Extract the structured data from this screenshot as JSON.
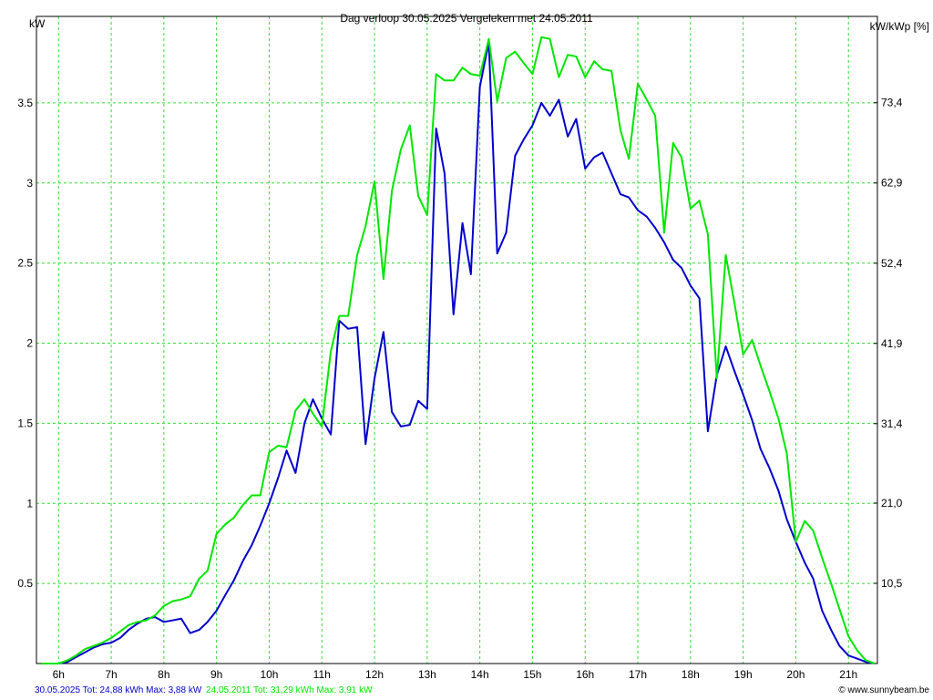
{
  "chart_data": {
    "type": "line",
    "title": "Dag  verloop 30.05.2025   Vergeleken met 24.05.2011",
    "y_label": "kW",
    "y2_label": "kW/kWp [%]",
    "credit": "© www.sunnybeam.be",
    "x": [
      5.67,
      5.83,
      6.0,
      6.17,
      6.33,
      6.5,
      6.67,
      6.83,
      7.0,
      7.17,
      7.33,
      7.5,
      7.67,
      7.83,
      8.0,
      8.17,
      8.33,
      8.5,
      8.67,
      8.83,
      9.0,
      9.17,
      9.33,
      9.5,
      9.67,
      9.83,
      10.0,
      10.17,
      10.33,
      10.5,
      10.67,
      10.83,
      11.0,
      11.17,
      11.33,
      11.5,
      11.67,
      11.83,
      12.0,
      12.17,
      12.33,
      12.5,
      12.67,
      12.83,
      13.0,
      13.17,
      13.33,
      13.5,
      13.67,
      13.83,
      14.0,
      14.17,
      14.33,
      14.5,
      14.67,
      14.83,
      15.0,
      15.17,
      15.33,
      15.5,
      15.67,
      15.83,
      16.0,
      16.17,
      16.33,
      16.5,
      16.67,
      16.83,
      17.0,
      17.17,
      17.33,
      17.5,
      17.67,
      17.83,
      18.0,
      18.17,
      18.33,
      18.5,
      18.67,
      18.83,
      19.0,
      19.17,
      19.33,
      19.5,
      19.67,
      19.83,
      20.0,
      20.17,
      20.33,
      20.5,
      20.67,
      20.83,
      21.0,
      21.17,
      21.33,
      21.5
    ],
    "series": [
      {
        "name": "30.05.2025 Tot: 24,88 kWh Max: 3,88 kW",
        "color": "#0000cc",
        "values": [
          0,
          0,
          0,
          0.01,
          0.04,
          0.07,
          0.1,
          0.12,
          0.13,
          0.16,
          0.21,
          0.25,
          0.28,
          0.29,
          0.26,
          0.27,
          0.28,
          0.19,
          0.21,
          0.26,
          0.33,
          0.43,
          0.52,
          0.64,
          0.74,
          0.86,
          1.0,
          1.16,
          1.33,
          1.19,
          1.5,
          1.65,
          1.53,
          1.43,
          2.14,
          2.09,
          2.1,
          1.37,
          1.78,
          2.07,
          1.57,
          1.48,
          1.49,
          1.64,
          1.59,
          3.34,
          3.06,
          2.18,
          2.75,
          2.43,
          3.6,
          3.88,
          2.56,
          2.69,
          3.17,
          3.27,
          3.36,
          3.5,
          3.42,
          3.52,
          3.29,
          3.4,
          3.09,
          3.16,
          3.19,
          3.06,
          2.93,
          2.91,
          2.83,
          2.79,
          2.72,
          2.63,
          2.52,
          2.47,
          2.36,
          2.28,
          1.45,
          1.8,
          1.98,
          1.83,
          1.68,
          1.52,
          1.34,
          1.22,
          1.08,
          0.9,
          0.76,
          0.63,
          0.53,
          0.33,
          0.21,
          0.11,
          0.05,
          0.03,
          0.01,
          0
        ]
      },
      {
        "name": "24.05.2011 Tot: 31,29 kWh Max: 3,91 kW",
        "color": "#00e600",
        "values": [
          0,
          0,
          0,
          0.02,
          0.05,
          0.09,
          0.11,
          0.13,
          0.16,
          0.2,
          0.24,
          0.26,
          0.27,
          0.3,
          0.36,
          0.39,
          0.4,
          0.42,
          0.53,
          0.58,
          0.81,
          0.87,
          0.91,
          0.99,
          1.05,
          1.05,
          1.32,
          1.36,
          1.35,
          1.58,
          1.65,
          1.56,
          1.48,
          1.95,
          2.17,
          2.17,
          2.55,
          2.73,
          3.01,
          2.4,
          2.95,
          3.21,
          3.36,
          2.92,
          2.8,
          3.68,
          3.64,
          3.64,
          3.72,
          3.68,
          3.67,
          3.9,
          3.51,
          3.78,
          3.82,
          3.75,
          3.68,
          3.91,
          3.9,
          3.66,
          3.8,
          3.79,
          3.66,
          3.76,
          3.71,
          3.7,
          3.33,
          3.15,
          3.62,
          3.52,
          3.42,
          2.69,
          3.25,
          3.16,
          2.84,
          2.89,
          2.68,
          1.78,
          2.55,
          2.26,
          1.93,
          2.02,
          1.86,
          1.7,
          1.53,
          1.31,
          0.76,
          0.89,
          0.83,
          0.66,
          0.5,
          0.34,
          0.17,
          0.08,
          0.02,
          0
        ]
      }
    ],
    "xlim": [
      5.58,
      21.55
    ],
    "xticks": [
      {
        "value": 6,
        "label": "6h"
      },
      {
        "value": 7,
        "label": "7h"
      },
      {
        "value": 8,
        "label": "8h"
      },
      {
        "value": 9,
        "label": "9h"
      },
      {
        "value": 10,
        "label": "10h"
      },
      {
        "value": 11,
        "label": "11h"
      },
      {
        "value": 12,
        "label": "12h"
      },
      {
        "value": 13,
        "label": "13h"
      },
      {
        "value": 14,
        "label": "14h"
      },
      {
        "value": 15,
        "label": "15h"
      },
      {
        "value": 16,
        "label": "16h"
      },
      {
        "value": 17,
        "label": "17h"
      },
      {
        "value": 18,
        "label": "18h"
      },
      {
        "value": 19,
        "label": "19h"
      },
      {
        "value": 20,
        "label": "20h"
      },
      {
        "value": 21,
        "label": "21h"
      }
    ],
    "ylim": [
      0,
      4.04
    ],
    "yticks": [
      0.5,
      1,
      1.5,
      2,
      2.5,
      3,
      3.5
    ],
    "y2lim": [
      0,
      84.7
    ],
    "y2ticks": [
      {
        "value": 10.5,
        "label": "10,5"
      },
      {
        "value": 21.0,
        "label": "21,0"
      },
      {
        "value": 31.4,
        "label": "31,4"
      },
      {
        "value": 41.9,
        "label": "41,9"
      },
      {
        "value": 52.4,
        "label": "52,4"
      },
      {
        "value": 62.9,
        "label": "62,9"
      },
      {
        "value": 73.4,
        "label": "73,4"
      }
    ],
    "grid": true,
    "grid_color": "#33dd33"
  }
}
